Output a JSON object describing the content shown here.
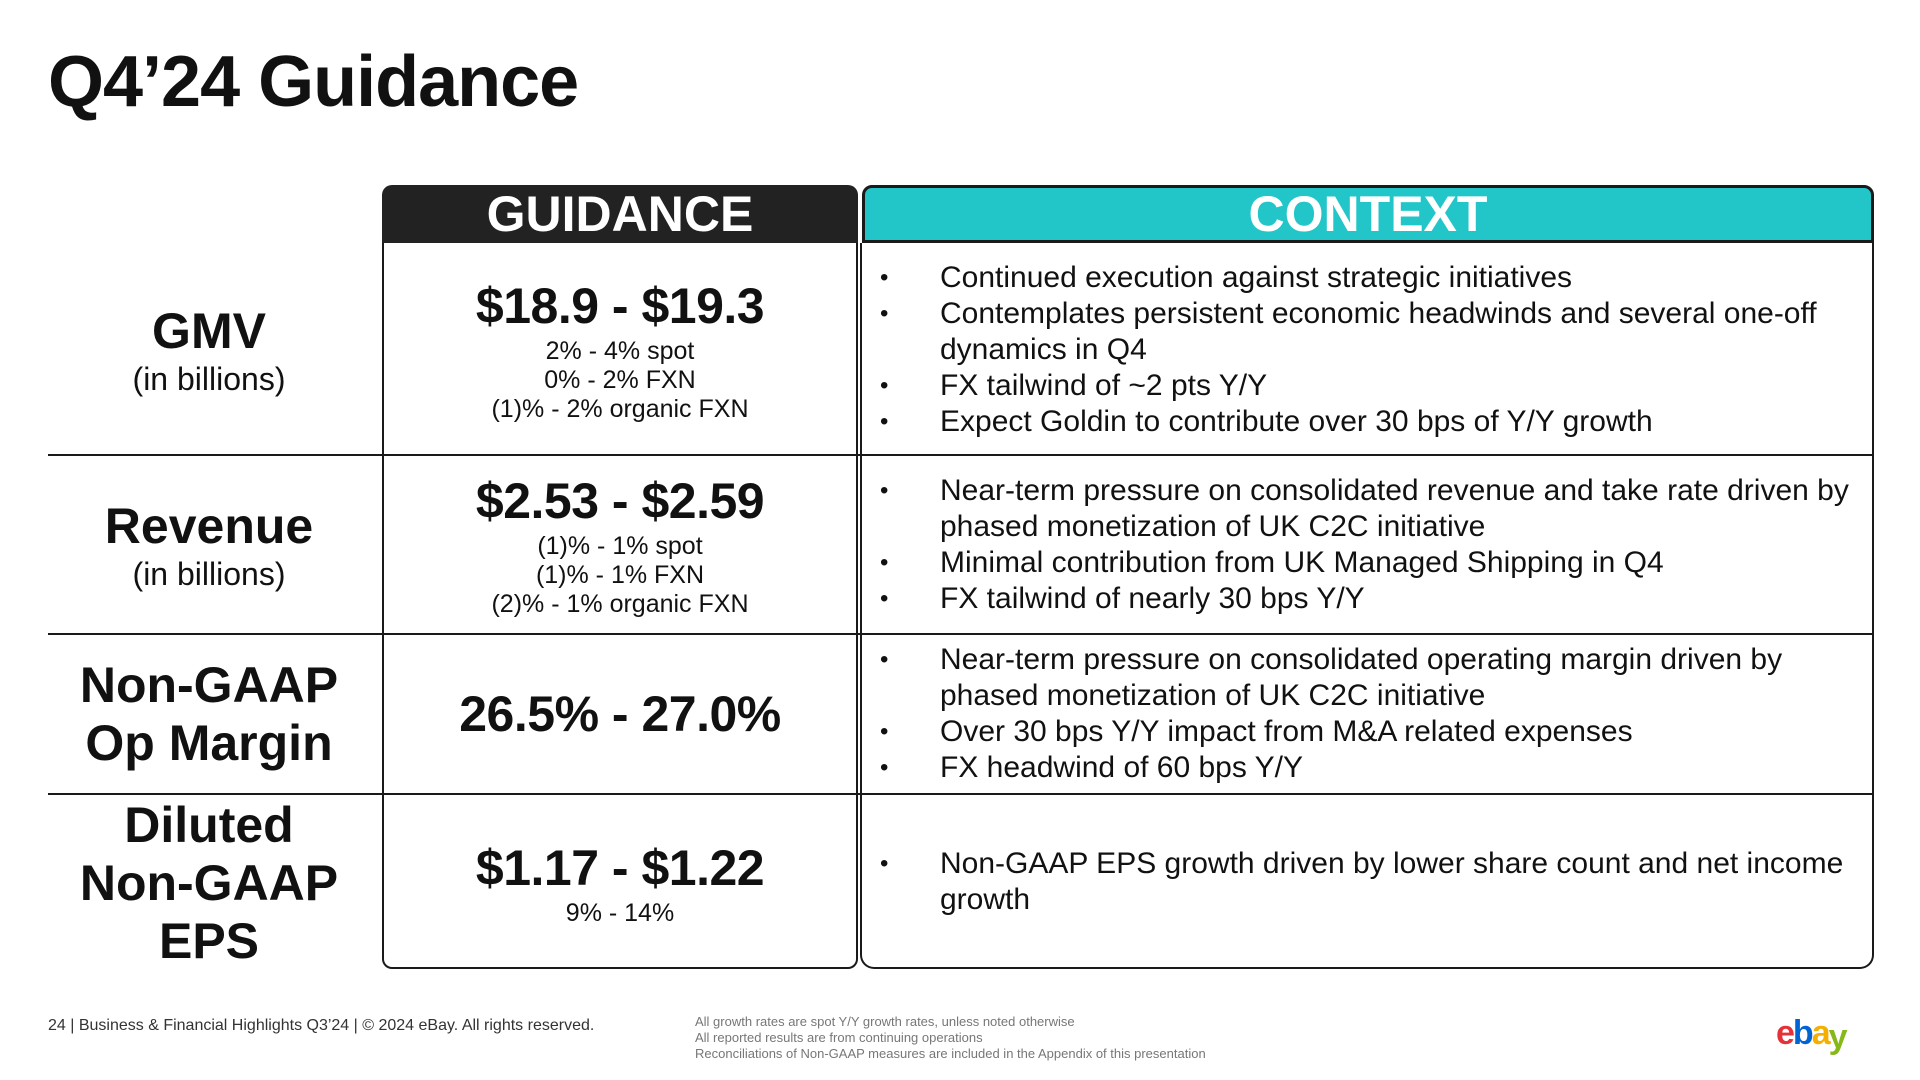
{
  "title": "Q4’24 Guidance",
  "headers": {
    "guidance": "GUIDANCE",
    "context": "CONTEXT"
  },
  "colors": {
    "guidance_header": "#222222",
    "context_header": "#22c6c9"
  },
  "rows": [
    {
      "metric": "GMV",
      "unit": "(in billions)",
      "range": "$18.9 - $19.3",
      "details": [
        "2% - 4% spot",
        "0% - 2% FXN",
        "(1)% - 2% organic FXN"
      ],
      "context": [
        "Continued execution against strategic initiatives",
        "Contemplates persistent economic headwinds and several one-off dynamics in Q4",
        "FX tailwind of ~2 pts Y/Y",
        "Expect Goldin to contribute over 30 bps of Y/Y growth"
      ]
    },
    {
      "metric": "Revenue",
      "unit": "(in billions)",
      "range": "$2.53 - $2.59",
      "details": [
        "(1)% - 1% spot",
        "(1)% - 1% FXN",
        "(2)% - 1% organic FXN"
      ],
      "context": [
        "Near-term pressure on consolidated revenue and take rate driven by phased monetization of UK C2C initiative",
        "Minimal contribution from UK Managed Shipping in Q4",
        "FX tailwind of nearly 30 bps Y/Y"
      ]
    },
    {
      "metric": "Non-GAAP\nOp Margin",
      "range": "26.5% - 27.0%",
      "context": [
        "Near-term pressure on consolidated operating margin driven by phased monetization of UK C2C initiative",
        "Over 30 bps Y/Y impact from M&A related expenses",
        "FX headwind of 60 bps Y/Y"
      ]
    },
    {
      "metric": "Diluted\nNon-GAAP\nEPS",
      "range": "$1.17 - $1.22",
      "details": [
        "9% - 14%"
      ],
      "context": [
        "Non-GAAP EPS growth driven by lower share count and net income growth"
      ]
    }
  ],
  "footer": {
    "left": "24 | Business & Financial Highlights Q3’24 | © 2024 eBay. All rights reserved.",
    "notes": [
      "All growth rates are spot Y/Y growth rates, unless noted otherwise",
      "All reported results are from continuing operations",
      "Reconciliations of Non-GAAP measures are included in the Appendix of this presentation"
    ]
  },
  "logo": {
    "name": "ebay-logo",
    "letters": [
      "e",
      "b",
      "a",
      "y"
    ],
    "colors": [
      "#e53238",
      "#0064d2",
      "#f5af02",
      "#86b817"
    ]
  }
}
